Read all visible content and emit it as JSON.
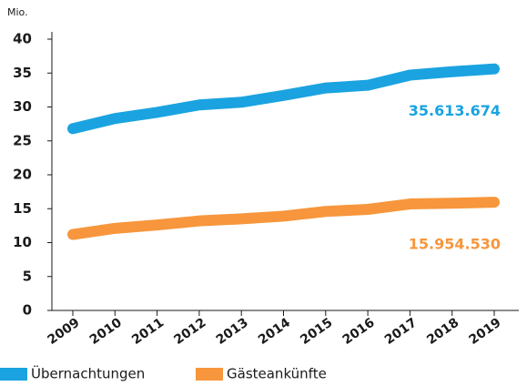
{
  "chart_data": {
    "type": "line",
    "ylabel": "Mio.",
    "categories": [
      "2009",
      "2010",
      "2011",
      "2012",
      "2013",
      "2014",
      "2015",
      "2016",
      "2017",
      "2018",
      "2019"
    ],
    "series": [
      {
        "name": "Übernachtungen",
        "color": "#1aa3e0",
        "values": [
          26.8,
          28.3,
          29.2,
          30.3,
          30.7,
          31.7,
          32.8,
          33.2,
          34.7,
          35.2,
          35.613674
        ],
        "value_labels": [
          null,
          null,
          null,
          null,
          null,
          null,
          null,
          null,
          null,
          null,
          "35.613.674"
        ]
      },
      {
        "name": "Gästeankünfte",
        "color": "#f7963c",
        "values": [
          11.2,
          12.1,
          12.6,
          13.2,
          13.5,
          13.9,
          14.6,
          14.9,
          15.7,
          15.8,
          15.95453
        ],
        "value_labels": [
          null,
          null,
          null,
          null,
          null,
          null,
          null,
          null,
          null,
          null,
          "15.954.530"
        ]
      }
    ],
    "ylim": [
      0,
      40
    ],
    "yticks": [
      0,
      5,
      10,
      15,
      20,
      25,
      30,
      35,
      40
    ],
    "grid": false
  }
}
